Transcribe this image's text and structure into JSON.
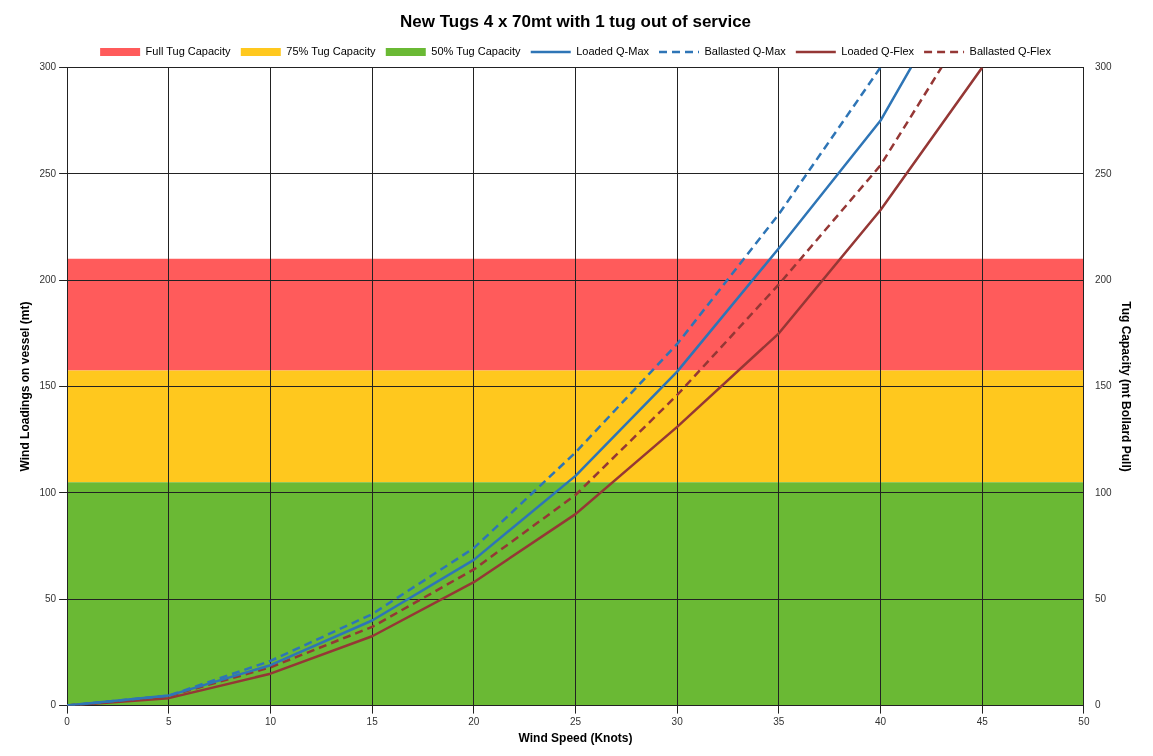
{
  "chart_data": {
    "type": "line",
    "title": "New Tugs 4 x 70mt with 1 tug out of service",
    "xlabel": "Wind Speed (Knots)",
    "ylabel": "Wind Loadings on vessel (mt)",
    "y2label": "Tug Capacity (mt Bollard Pull)",
    "xlim": [
      0,
      50
    ],
    "xticks": [
      0,
      5,
      10,
      15,
      20,
      25,
      30,
      35,
      40,
      45,
      50
    ],
    "ylim": [
      0,
      300
    ],
    "yticks": [
      0,
      50,
      100,
      150,
      200,
      250,
      300
    ],
    "y2lim": [
      0,
      300
    ],
    "y2ticks": [
      0,
      50,
      100,
      150,
      200,
      250,
      300
    ],
    "grid": true,
    "legend": "top",
    "marker": "none",
    "bands": [
      {
        "axis": "y",
        "from": 157.5,
        "to": 210,
        "label": "Full Tug Capacity",
        "color": "#ff5b5b"
      },
      {
        "axis": "y",
        "from": 105,
        "to": 157.5,
        "label": "75% Tug Capacity",
        "color": "#ffc81e"
      },
      {
        "axis": "y",
        "from": 0,
        "to": 105,
        "label": "50% Tug Capacity",
        "color": "#6ab934"
      }
    ],
    "series": [
      {
        "name": "Loaded Q-Max",
        "color": "#2e75b6",
        "line_style": "solid",
        "x": [
          0,
          5,
          10,
          15,
          20,
          25,
          30,
          35,
          40,
          41.5
        ],
        "values": [
          0,
          4.7,
          19,
          40,
          68.5,
          108,
          157,
          215,
          275,
          300
        ]
      },
      {
        "name": "Ballasted Q-Max",
        "color": "#2e75b6",
        "line_style": "dashed",
        "x": [
          0,
          5,
          10,
          15,
          20,
          25,
          30,
          35,
          40
        ],
        "values": [
          0,
          4.7,
          21,
          43,
          74,
          119,
          170,
          231,
          300
        ]
      },
      {
        "name": "Loaded Q-Flex",
        "color": "#953735",
        "line_style": "solid",
        "x": [
          0,
          5,
          10,
          15,
          20,
          25,
          30,
          35,
          40,
          45
        ],
        "values": [
          0,
          3.5,
          15,
          32.6,
          58,
          90,
          131,
          175,
          233,
          300
        ]
      },
      {
        "name": "Ballasted Q-Flex",
        "color": "#953735",
        "line_style": "dashed",
        "x": [
          0,
          5,
          10,
          15,
          20,
          25,
          30,
          35,
          40,
          43
        ],
        "values": [
          0,
          4.5,
          18,
          37,
          64,
          99,
          146,
          198,
          254,
          300
        ]
      }
    ]
  }
}
